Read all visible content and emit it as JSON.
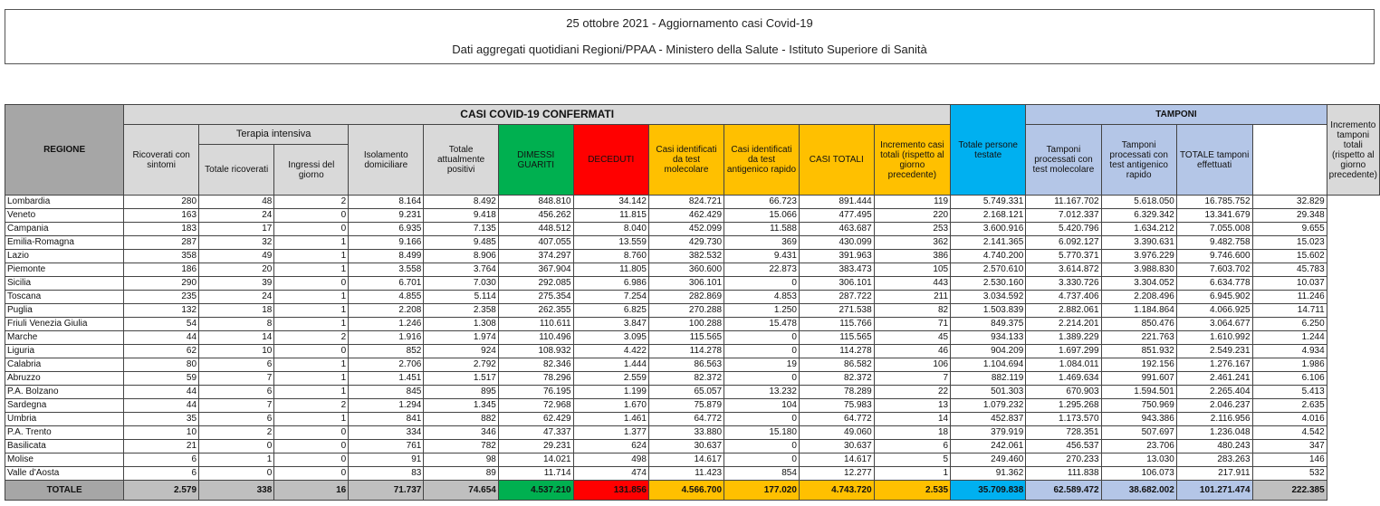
{
  "title": {
    "line1": "25 ottobre 2021 - Aggiornamento casi Covid-19",
    "line2": "Dati aggregati quotidiani Regioni/PPAA - Ministero della Salute - Istituto Superiore di Sanità"
  },
  "headers": {
    "regione": "REGIONE",
    "casi_group": "CASI COVID-19 CONFERMATI",
    "tamponi_group": "TAMPONI",
    "terapia_group": "Terapia intensiva",
    "ricoverati": "Ricoverati con sintomi",
    "ti_totale": "Totale ricoverati",
    "ti_ingressi": "Ingressi del giorno",
    "isolamento": "Isolamento domiciliare",
    "positivi": "Totale attualmente positivi",
    "dimessi": "DIMESSI GUARITI",
    "deceduti": "DECEDUTI",
    "molecolare": "Casi identificati da test molecolare",
    "antigenico": "Casi identificati da test antigenico rapido",
    "casi_totali": "CASI TOTALI",
    "incremento_casi": "Incremento casi totali (rispetto al giorno precedente)",
    "persone_testate": "Totale persone testate",
    "tamp_mol": "Tamponi processati con test molecolare",
    "tamp_ant": "Tamponi processati con test antigenico rapido",
    "tamp_tot": "TOTALE tamponi effettuati",
    "incremento_tamp": "Incremento tamponi totali (rispetto al giorno precedente)"
  },
  "rows": [
    [
      "Lombardia",
      "280",
      "48",
      "2",
      "8.164",
      "8.492",
      "848.810",
      "34.142",
      "824.721",
      "66.723",
      "891.444",
      "119",
      "5.749.331",
      "11.167.702",
      "5.618.050",
      "16.785.752",
      "32.829"
    ],
    [
      "Veneto",
      "163",
      "24",
      "0",
      "9.231",
      "9.418",
      "456.262",
      "11.815",
      "462.429",
      "15.066",
      "477.495",
      "220",
      "2.168.121",
      "7.012.337",
      "6.329.342",
      "13.341.679",
      "29.348"
    ],
    [
      "Campania",
      "183",
      "17",
      "0",
      "6.935",
      "7.135",
      "448.512",
      "8.040",
      "452.099",
      "11.588",
      "463.687",
      "253",
      "3.600.916",
      "5.420.796",
      "1.634.212",
      "7.055.008",
      "9.655"
    ],
    [
      "Emilia-Romagna",
      "287",
      "32",
      "1",
      "9.166",
      "9.485",
      "407.055",
      "13.559",
      "429.730",
      "369",
      "430.099",
      "362",
      "2.141.365",
      "6.092.127",
      "3.390.631",
      "9.482.758",
      "15.023"
    ],
    [
      "Lazio",
      "358",
      "49",
      "1",
      "8.499",
      "8.906",
      "374.297",
      "8.760",
      "382.532",
      "9.431",
      "391.963",
      "386",
      "4.740.200",
      "5.770.371",
      "3.976.229",
      "9.746.600",
      "15.602"
    ],
    [
      "Piemonte",
      "186",
      "20",
      "1",
      "3.558",
      "3.764",
      "367.904",
      "11.805",
      "360.600",
      "22.873",
      "383.473",
      "105",
      "2.570.610",
      "3.614.872",
      "3.988.830",
      "7.603.702",
      "45.783"
    ],
    [
      "Sicilia",
      "290",
      "39",
      "0",
      "6.701",
      "7.030",
      "292.085",
      "6.986",
      "306.101",
      "0",
      "306.101",
      "443",
      "2.530.160",
      "3.330.726",
      "3.304.052",
      "6.634.778",
      "10.037"
    ],
    [
      "Toscana",
      "235",
      "24",
      "1",
      "4.855",
      "5.114",
      "275.354",
      "7.254",
      "282.869",
      "4.853",
      "287.722",
      "211",
      "3.034.592",
      "4.737.406",
      "2.208.496",
      "6.945.902",
      "11.246"
    ],
    [
      "Puglia",
      "132",
      "18",
      "1",
      "2.208",
      "2.358",
      "262.355",
      "6.825",
      "270.288",
      "1.250",
      "271.538",
      "82",
      "1.503.839",
      "2.882.061",
      "1.184.864",
      "4.066.925",
      "14.711"
    ],
    [
      "Friuli Venezia Giulia",
      "54",
      "8",
      "1",
      "1.246",
      "1.308",
      "110.611",
      "3.847",
      "100.288",
      "15.478",
      "115.766",
      "71",
      "849.375",
      "2.214.201",
      "850.476",
      "3.064.677",
      "6.250"
    ],
    [
      "Marche",
      "44",
      "14",
      "2",
      "1.916",
      "1.974",
      "110.496",
      "3.095",
      "115.565",
      "0",
      "115.565",
      "45",
      "934.133",
      "1.389.229",
      "221.763",
      "1.610.992",
      "1.244"
    ],
    [
      "Liguria",
      "62",
      "10",
      "0",
      "852",
      "924",
      "108.932",
      "4.422",
      "114.278",
      "0",
      "114.278",
      "46",
      "904.209",
      "1.697.299",
      "851.932",
      "2.549.231",
      "4.934"
    ],
    [
      "Calabria",
      "80",
      "6",
      "1",
      "2.706",
      "2.792",
      "82.346",
      "1.444",
      "86.563",
      "19",
      "86.582",
      "106",
      "1.104.694",
      "1.084.011",
      "192.156",
      "1.276.167",
      "1.986"
    ],
    [
      "Abruzzo",
      "59",
      "7",
      "1",
      "1.451",
      "1.517",
      "78.296",
      "2.559",
      "82.372",
      "0",
      "82.372",
      "7",
      "882.119",
      "1.469.634",
      "991.607",
      "2.461.241",
      "6.106"
    ],
    [
      "P.A. Bolzano",
      "44",
      "6",
      "1",
      "845",
      "895",
      "76.195",
      "1.199",
      "65.057",
      "13.232",
      "78.289",
      "22",
      "501.303",
      "670.903",
      "1.594.501",
      "2.265.404",
      "5.413"
    ],
    [
      "Sardegna",
      "44",
      "7",
      "2",
      "1.294",
      "1.345",
      "72.968",
      "1.670",
      "75.879",
      "104",
      "75.983",
      "13",
      "1.079.232",
      "1.295.268",
      "750.969",
      "2.046.237",
      "2.635"
    ],
    [
      "Umbria",
      "35",
      "6",
      "1",
      "841",
      "882",
      "62.429",
      "1.461",
      "64.772",
      "0",
      "64.772",
      "14",
      "452.837",
      "1.173.570",
      "943.386",
      "2.116.956",
      "4.016"
    ],
    [
      "P.A. Trento",
      "10",
      "2",
      "0",
      "334",
      "346",
      "47.337",
      "1.377",
      "33.880",
      "15.180",
      "49.060",
      "18",
      "379.919",
      "728.351",
      "507.697",
      "1.236.048",
      "4.542"
    ],
    [
      "Basilicata",
      "21",
      "0",
      "0",
      "761",
      "782",
      "29.231",
      "624",
      "30.637",
      "0",
      "30.637",
      "6",
      "242.061",
      "456.537",
      "23.706",
      "480.243",
      "347"
    ],
    [
      "Molise",
      "6",
      "1",
      "0",
      "91",
      "98",
      "14.021",
      "498",
      "14.617",
      "0",
      "14.617",
      "5",
      "249.460",
      "270.233",
      "13.030",
      "283.263",
      "146"
    ],
    [
      "Valle d'Aosta",
      "6",
      "0",
      "0",
      "83",
      "89",
      "11.714",
      "474",
      "11.423",
      "854",
      "12.277",
      "1",
      "91.362",
      "111.838",
      "106.073",
      "217.911",
      "532"
    ]
  ],
  "total": [
    "TOTALE",
    "2.579",
    "338",
    "16",
    "71.737",
    "74.654",
    "4.537.210",
    "131.856",
    "4.566.700",
    "177.020",
    "4.743.720",
    "2.535",
    "35.709.838",
    "62.589.472",
    "38.682.002",
    "101.271.474",
    "222.385"
  ]
}
